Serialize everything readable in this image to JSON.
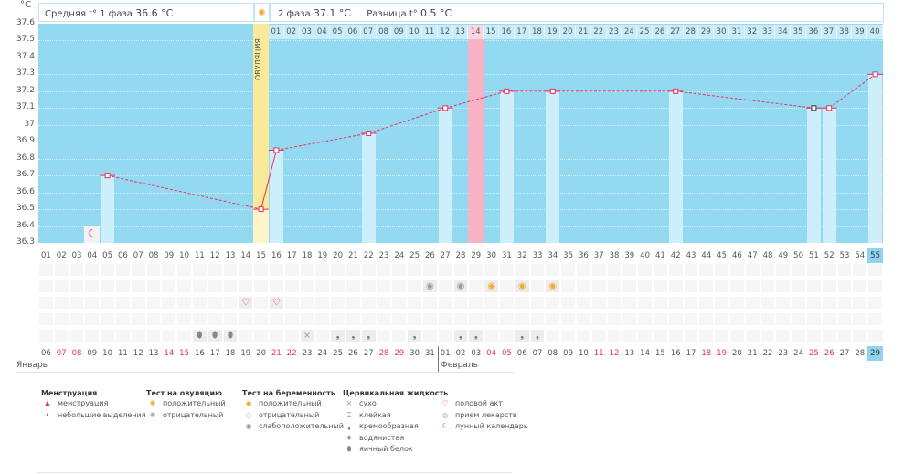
{
  "header": {
    "unit": "°C",
    "phase1_label": "Средняя t° 1 фаза",
    "phase1_value": "36.6 °C",
    "phase2_label": "2 фаза",
    "phase2_value": "37.1 °C",
    "diff_label": "Разница t°",
    "diff_value": "0.5 °C"
  },
  "ovulation_label": "ОВУЛЯЦИЯ",
  "chart_data": {
    "type": "line",
    "ylabel": "°C",
    "ylim": [
      36.3,
      37.6
    ],
    "y_ticks": [
      "37.6",
      "37.5",
      "37.4",
      "37.3",
      "37.2",
      "37.1",
      "37",
      "36.9",
      "36.8",
      "36.7",
      "36.6",
      "36.5",
      "36.4",
      "36.3"
    ],
    "cycle_days": [
      "01",
      "02",
      "03",
      "04",
      "05",
      "06",
      "07",
      "08",
      "09",
      "10",
      "11",
      "12",
      "13",
      "14",
      "15",
      "16",
      "17",
      "18",
      "19",
      "20",
      "21",
      "22",
      "23",
      "24",
      "25",
      "26",
      "27",
      "28",
      "29",
      "30",
      "31",
      "32",
      "33",
      "34",
      "35",
      "36",
      "37",
      "38",
      "39",
      "40",
      "41",
      "42",
      "43",
      "44",
      "45",
      "46",
      "47",
      "48",
      "49",
      "50",
      "51",
      "52",
      "53",
      "54",
      "55"
    ],
    "phase2_days": [
      "01",
      "02",
      "03",
      "04",
      "05",
      "06",
      "07",
      "08",
      "09",
      "10",
      "11",
      "12",
      "13",
      "14",
      "15",
      "16",
      "17",
      "18",
      "19",
      "20",
      "21",
      "22",
      "23",
      "24",
      "25",
      "26",
      "27",
      "28",
      "29",
      "30",
      "31",
      "32",
      "33",
      "34",
      "35",
      "36",
      "37",
      "38",
      "39",
      "40"
    ],
    "points": [
      {
        "day": 5,
        "temp": 36.7
      },
      {
        "day": 15,
        "temp": 36.5
      },
      {
        "day": 16,
        "temp": 36.85
      },
      {
        "day": 22,
        "temp": 36.95
      },
      {
        "day": 27,
        "temp": 37.1
      },
      {
        "day": 31,
        "temp": 37.2
      },
      {
        "day": 34,
        "temp": 37.2
      },
      {
        "day": 42,
        "temp": 37.2
      },
      {
        "day": 51,
        "temp": 37.1,
        "marker": "black"
      },
      {
        "day": 52,
        "temp": 37.1
      },
      {
        "day": 55,
        "temp": 37.3
      }
    ],
    "ovulation_day": 15,
    "phase2_highlight_day": 29,
    "moon_day": 4,
    "current_day": 55
  },
  "dates": [
    "06",
    "07",
    "08",
    "09",
    "10",
    "11",
    "12",
    "13",
    "14",
    "15",
    "16",
    "17",
    "18",
    "19",
    "20",
    "21",
    "22",
    "23",
    "24",
    "25",
    "26",
    "27",
    "28",
    "29",
    "30",
    "31",
    "01",
    "02",
    "03",
    "04",
    "05",
    "06",
    "07",
    "08",
    "09",
    "10",
    "11",
    "12",
    "13",
    "14",
    "15",
    "16",
    "17",
    "18",
    "19",
    "20",
    "21",
    "22",
    "23",
    "24",
    "25",
    "26",
    "27",
    "28",
    "29"
  ],
  "weekend_cols": [
    2,
    3,
    9,
    10,
    16,
    17,
    23,
    24,
    30,
    31,
    37,
    38,
    44,
    45,
    51,
    52
  ],
  "months": {
    "jan": "Январь",
    "feb": "Февраль"
  },
  "markers": [
    {
      "day": 26,
      "row": 1,
      "icon": "weak-positive"
    },
    {
      "day": 28,
      "row": 1,
      "icon": "weak-positive"
    },
    {
      "day": 30,
      "row": 1,
      "icon": "positive"
    },
    {
      "day": 32,
      "row": 1,
      "icon": "positive"
    },
    {
      "day": 34,
      "row": 1,
      "icon": "positive"
    },
    {
      "day": 14,
      "row": 2,
      "icon": "heart"
    },
    {
      "day": 16,
      "row": 2,
      "icon": "heart"
    },
    {
      "day": 11,
      "row": 4,
      "icon": "egg-white"
    },
    {
      "day": 12,
      "row": 4,
      "icon": "egg-white"
    },
    {
      "day": 13,
      "row": 4,
      "icon": "egg-white"
    },
    {
      "day": 18,
      "row": 4,
      "icon": "dry"
    },
    {
      "day": 20,
      "row": 4,
      "icon": "creamy"
    },
    {
      "day": 21,
      "row": 4,
      "icon": "creamy"
    },
    {
      "day": 22,
      "row": 4,
      "icon": "creamy"
    },
    {
      "day": 25,
      "row": 4,
      "icon": "creamy"
    },
    {
      "day": 28,
      "row": 4,
      "icon": "creamy"
    },
    {
      "day": 29,
      "row": 4,
      "icon": "creamy"
    },
    {
      "day": 32,
      "row": 4,
      "icon": "creamy"
    },
    {
      "day": 33,
      "row": 4,
      "icon": "creamy"
    }
  ],
  "legend": [
    {
      "title": "Менструация",
      "items": [
        {
          "icon": "menstruation",
          "label": "менструация"
        },
        {
          "icon": "spotting",
          "label": "небольшие выделения"
        }
      ]
    },
    {
      "title": "Тест на овуляцию",
      "items": [
        {
          "icon": "ov-positive",
          "label": "положительный"
        },
        {
          "icon": "ov-negative",
          "label": "отрицательный"
        }
      ]
    },
    {
      "title": "Тест на беременность",
      "items": [
        {
          "icon": "positive",
          "label": "положительный"
        },
        {
          "icon": "negative",
          "label": "отрицательный"
        },
        {
          "icon": "weak-positive",
          "label": "слабоположительный"
        }
      ]
    },
    {
      "title": "Цервикальная жидкость",
      "items": [
        {
          "icon": "dry",
          "label": "сухо"
        },
        {
          "icon": "sticky",
          "label": "клейкая"
        },
        {
          "icon": "creamy",
          "label": "кремообразная"
        },
        {
          "icon": "watery",
          "label": "водянистая"
        },
        {
          "icon": "egg-white",
          "label": "яичный белок"
        }
      ]
    },
    {
      "title": "",
      "items": [
        {
          "icon": "heart",
          "label": "половой акт"
        },
        {
          "icon": "pill",
          "label": "прием лекарств"
        },
        {
          "icon": "moon",
          "label": "лунный календарь"
        }
      ]
    }
  ],
  "colors": {
    "bg": "#94d9f2",
    "bar": "#cdeefb",
    "line": "#e8305a",
    "ovulation": "#fbe99a",
    "pink": "#f9b3c6"
  }
}
